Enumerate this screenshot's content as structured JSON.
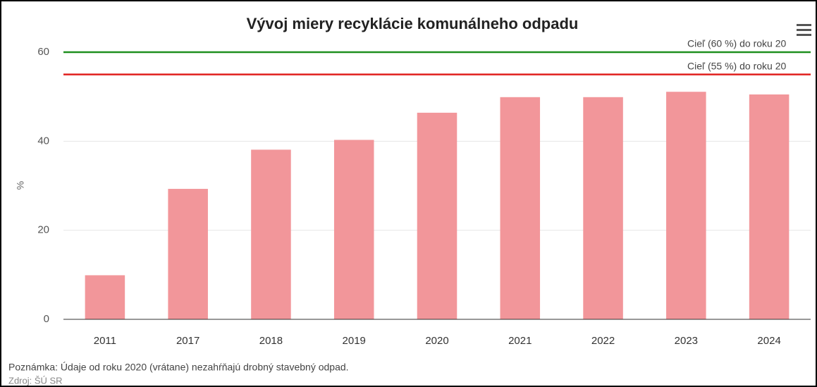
{
  "chart_data": {
    "type": "bar",
    "title": "Vývoj miery recyklácie komunálneho odpadu",
    "y_label": "%",
    "categories": [
      "2011",
      "2017",
      "2018",
      "2019",
      "2020",
      "2021",
      "2022",
      "2023",
      "2024"
    ],
    "values": [
      9.9,
      29.3,
      38.1,
      40.3,
      46.4,
      49.9,
      49.9,
      51.1,
      50.5
    ],
    "color": "#f2969a",
    "ylim": [
      0,
      60
    ],
    "yticks": [
      0,
      20,
      40,
      60
    ],
    "grid": true,
    "plot_lines": [
      {
        "value": 60,
        "label": "Cieľ (60 %) do roku 20",
        "color": "#1f8f1f"
      },
      {
        "value": 55,
        "label": "Cieľ (55 %) do roku 20",
        "color": "#e0201e"
      }
    ],
    "note": "Poznámka: Údaje od roku 2020 (vrátane) nezahŕňajú drobný stavebný odpad.",
    "source": "Zdroj: ŠÚ SR"
  }
}
